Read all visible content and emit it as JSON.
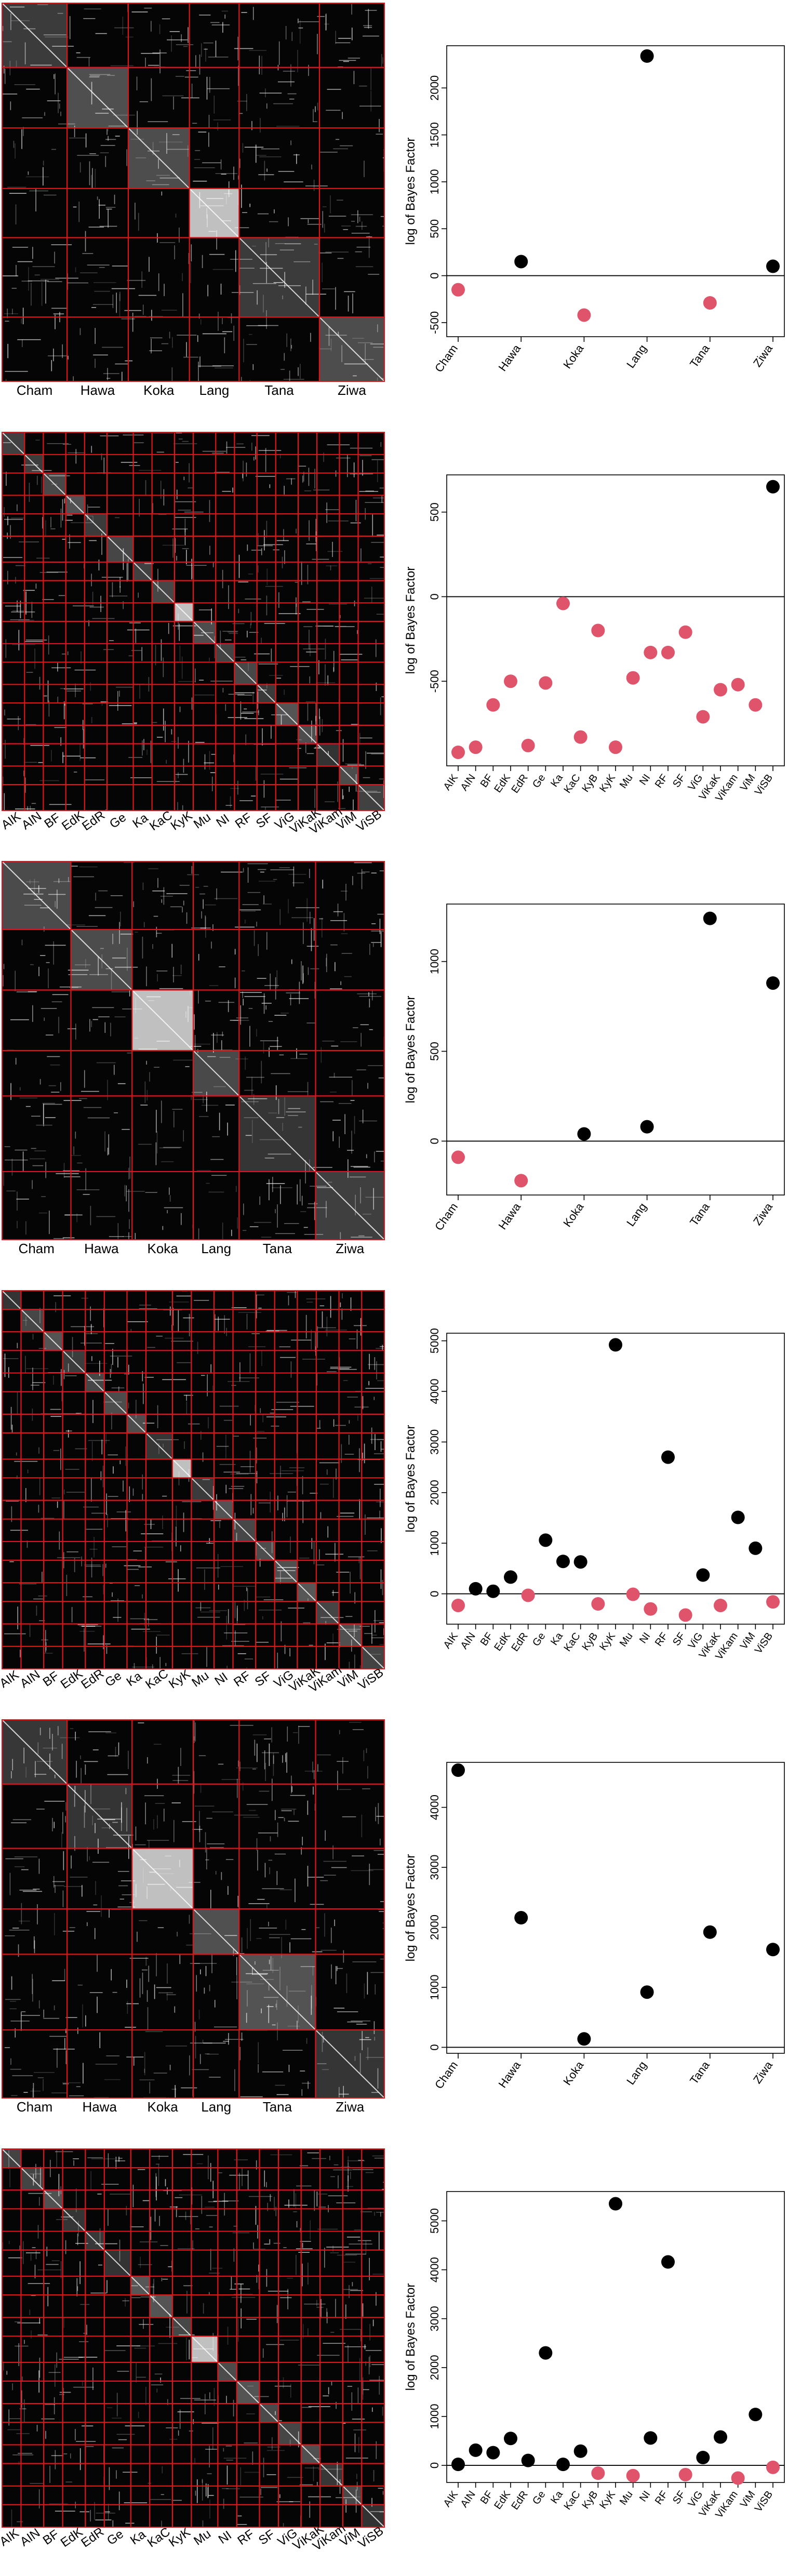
{
  "colors": {
    "heat_bg": "#050505",
    "grid_line": "#E0141A",
    "sig": "#000000",
    "nonsig": "#DF536B"
  },
  "chart_data": [
    {
      "type": "heatmap",
      "title": "",
      "group_labels": [
        "Cham",
        "Hawa",
        "Koka",
        "Lang",
        "Tana",
        "Ziwa"
      ],
      "group_fractions": [
        0.17,
        0.16,
        0.16,
        0.13,
        0.21,
        0.17
      ],
      "bright_block": 3,
      "texture_seed": 11
    },
    {
      "type": "scatter",
      "categories": [
        "Cham",
        "Hawa",
        "Koka",
        "Lang",
        "Tana",
        "Ziwa"
      ],
      "values": [
        -150,
        150,
        -420,
        2340,
        -290,
        100
      ],
      "significant": [
        false,
        true,
        false,
        true,
        false,
        true
      ],
      "ylabel": "log of Bayes Factor",
      "ylim": [
        -650,
        2450
      ],
      "yticks": [
        -500,
        0,
        500,
        1000,
        1500,
        2000
      ],
      "hline": 0
    },
    {
      "type": "heatmap",
      "title": "",
      "group_labels": [
        "AIK",
        "AIN",
        "BF",
        "EdK",
        "EdR",
        "Ge",
        "Ka",
        "KaC",
        "KyK",
        "Mu",
        "NI",
        "RF",
        "SF",
        "ViG",
        "ViKaK",
        "ViKam",
        "ViM",
        "ViSB"
      ],
      "group_fractions": [
        0.06,
        0.05,
        0.06,
        0.05,
        0.06,
        0.07,
        0.05,
        0.06,
        0.05,
        0.06,
        0.05,
        0.06,
        0.05,
        0.06,
        0.05,
        0.06,
        0.05,
        0.07
      ],
      "bright_block": 8,
      "texture_seed": 23
    },
    {
      "type": "scatter",
      "categories": [
        "AIK",
        "AIN",
        "BF",
        "EdK",
        "EdR",
        "Ge",
        "Ka",
        "KaC",
        "KyB",
        "KyK",
        "Mu",
        "NI",
        "RF",
        "SF",
        "ViG",
        "ViKaK",
        "ViKam",
        "ViM",
        "ViSB"
      ],
      "values": [
        -920,
        -890,
        -640,
        -500,
        -880,
        -510,
        -40,
        -830,
        -200,
        -890,
        -480,
        -330,
        -330,
        -210,
        -710,
        -550,
        -520,
        -640,
        650
      ],
      "significant": [
        false,
        false,
        false,
        false,
        false,
        false,
        false,
        false,
        false,
        false,
        false,
        false,
        false,
        false,
        false,
        false,
        false,
        false,
        true
      ],
      "ylabel": "log of Bayes Factor",
      "ylim": [
        -1000,
        720
      ],
      "yticks": [
        -500,
        0,
        500
      ],
      "hline": 0
    },
    {
      "type": "heatmap",
      "title": "",
      "group_labels": [
        "Cham",
        "Hawa",
        "Koka",
        "Lang",
        "Tana",
        "Ziwa"
      ],
      "group_fractions": [
        0.18,
        0.16,
        0.16,
        0.12,
        0.2,
        0.18
      ],
      "bright_block": 2,
      "texture_seed": 37
    },
    {
      "type": "scatter",
      "categories": [
        "Cham",
        "Hawa",
        "Koka",
        "Lang",
        "Tana",
        "Ziwa"
      ],
      "values": [
        -90,
        -220,
        40,
        80,
        1240,
        880
      ],
      "significant": [
        false,
        false,
        true,
        true,
        true,
        true
      ],
      "ylabel": "log of Bayes Factor",
      "ylim": [
        -300,
        1320
      ],
      "yticks": [
        0,
        500,
        1000
      ],
      "hline": 0
    },
    {
      "type": "heatmap",
      "title": "",
      "group_labels": [
        "AIK",
        "AIN",
        "BF",
        "EdK",
        "EdR",
        "Ge",
        "Ka",
        "KaC",
        "KyK",
        "Mu",
        "NI",
        "RF",
        "SF",
        "ViG",
        "ViKaK",
        "ViKam",
        "ViM",
        "ViSB"
      ],
      "group_fractions": [
        0.05,
        0.06,
        0.05,
        0.06,
        0.05,
        0.06,
        0.05,
        0.07,
        0.05,
        0.06,
        0.05,
        0.06,
        0.05,
        0.06,
        0.05,
        0.06,
        0.06,
        0.06
      ],
      "bright_block": 8,
      "texture_seed": 41
    },
    {
      "type": "scatter",
      "categories": [
        "AIK",
        "AIN",
        "BF",
        "EdK",
        "EdR",
        "Ge",
        "Ka",
        "KaC",
        "KyB",
        "KyK",
        "Mu",
        "NI",
        "RF",
        "SF",
        "ViG",
        "ViKaK",
        "ViKam",
        "ViM",
        "ViSB"
      ],
      "values": [
        -230,
        100,
        50,
        330,
        -30,
        1060,
        640,
        630,
        -200,
        4920,
        -10,
        -300,
        2700,
        -420,
        370,
        -230,
        1510,
        900,
        -160
      ],
      "significant": [
        false,
        true,
        true,
        true,
        false,
        true,
        true,
        true,
        false,
        true,
        false,
        false,
        true,
        false,
        true,
        false,
        true,
        true,
        false
      ],
      "ylabel": "log of Bayes Factor",
      "ylim": [
        -600,
        5150
      ],
      "yticks": [
        0,
        1000,
        2000,
        3000,
        4000,
        5000
      ],
      "hline": 0
    },
    {
      "type": "heatmap",
      "title": "",
      "group_labels": [
        "Cham",
        "Hawa",
        "Koka",
        "Lang",
        "Tana",
        "Ziwa"
      ],
      "group_fractions": [
        0.17,
        0.17,
        0.16,
        0.12,
        0.2,
        0.18
      ],
      "bright_block": 2,
      "texture_seed": 53
    },
    {
      "type": "scatter",
      "categories": [
        "Cham",
        "Hawa",
        "Koka",
        "Lang",
        "Tana",
        "Ziwa"
      ],
      "values": [
        4620,
        2160,
        140,
        920,
        1920,
        1630
      ],
      "significant": [
        true,
        true,
        true,
        true,
        true,
        true
      ],
      "ylabel": "log of Bayes Factor",
      "ylim": [
        -100,
        4750
      ],
      "yticks": [
        0,
        1000,
        2000,
        3000,
        4000
      ],
      "hline": 0
    },
    {
      "type": "heatmap",
      "title": "",
      "group_labels": [
        "AIK",
        "AIN",
        "BF",
        "EdK",
        "EdR",
        "Ge",
        "Ka",
        "KaC",
        "KyK",
        "Mu",
        "NI",
        "RF",
        "SF",
        "ViG",
        "ViKaK",
        "ViKam",
        "ViM",
        "ViSB"
      ],
      "group_fractions": [
        0.05,
        0.06,
        0.05,
        0.06,
        0.05,
        0.07,
        0.05,
        0.06,
        0.05,
        0.07,
        0.05,
        0.06,
        0.05,
        0.06,
        0.05,
        0.06,
        0.05,
        0.06
      ],
      "bright_block": 9,
      "texture_seed": 67
    },
    {
      "type": "scatter",
      "categories": [
        "AIK",
        "AIN",
        "BF",
        "EdK",
        "EdR",
        "Ge",
        "Ka",
        "KaC",
        "KyB",
        "KyK",
        "Mu",
        "NI",
        "RF",
        "SF",
        "ViG",
        "ViKaK",
        "ViKam",
        "ViM",
        "ViSB"
      ],
      "values": [
        20,
        310,
        260,
        550,
        100,
        2300,
        20,
        290,
        -160,
        5350,
        -210,
        560,
        4160,
        -190,
        160,
        580,
        -260,
        1040,
        -40
      ],
      "significant": [
        true,
        true,
        true,
        true,
        true,
        true,
        true,
        true,
        false,
        true,
        false,
        true,
        true,
        false,
        true,
        true,
        false,
        true,
        false
      ],
      "ylabel": "log of Bayes Factor",
      "ylim": [
        -350,
        5600
      ],
      "yticks": [
        0,
        1000,
        2000,
        3000,
        4000,
        5000
      ],
      "hline": 0
    }
  ]
}
